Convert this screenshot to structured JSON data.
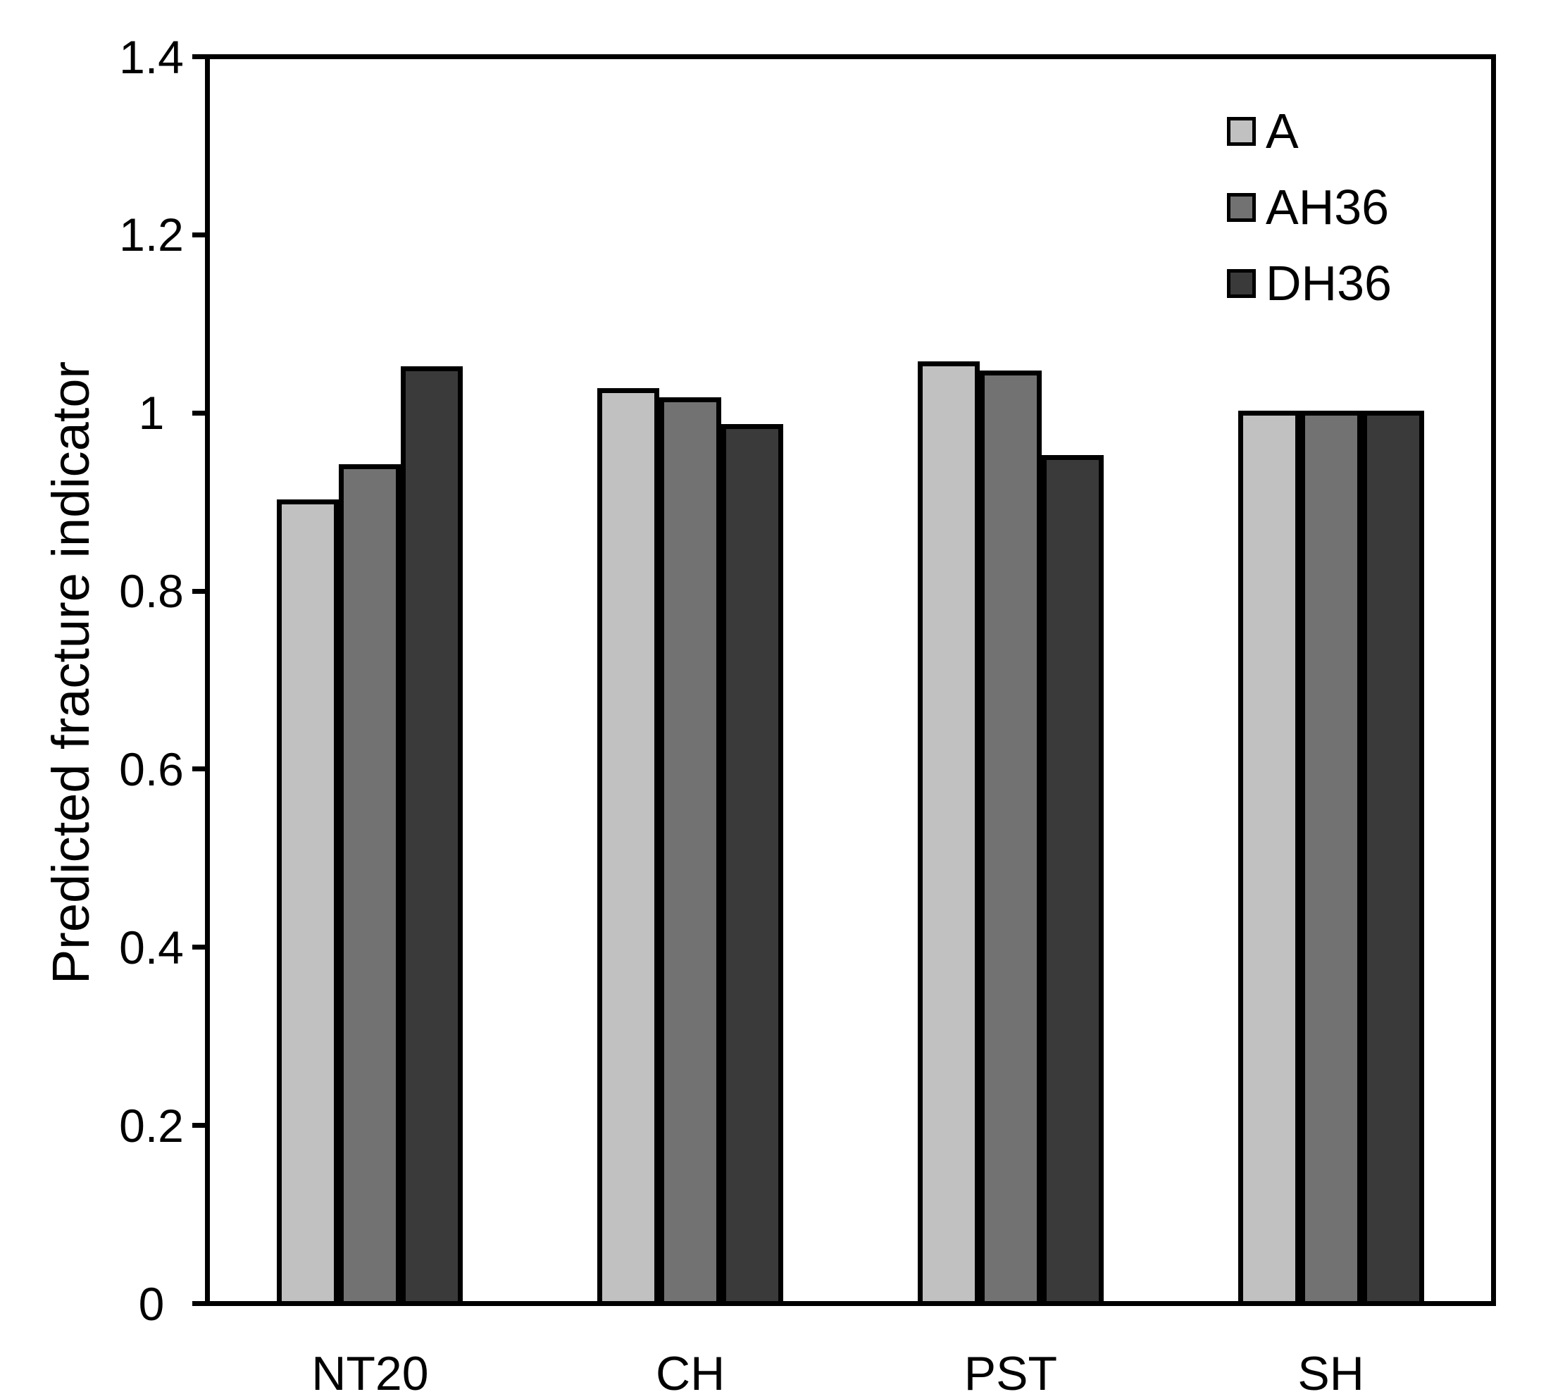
{
  "figure": {
    "background_color": "#ffffff",
    "axis_line_color": "#000000",
    "y_axis_title": "Predicted fracture indicator"
  },
  "chart_data": {
    "type": "bar",
    "title": "",
    "xlabel": "",
    "ylabel": "Predicted fracture indicator",
    "categories": [
      "NT20",
      "CH",
      "PST",
      "SH"
    ],
    "series": [
      {
        "name": "A",
        "color": "#c1c1c1",
        "values": [
          0.9,
          1.025,
          1.055,
          1.0
        ]
      },
      {
        "name": "AH36",
        "color": "#727272",
        "values": [
          0.94,
          1.015,
          1.045,
          1.0
        ]
      },
      {
        "name": "DH36",
        "color": "#3a3a3a",
        "values": [
          1.05,
          0.985,
          0.95,
          1.0
        ]
      }
    ],
    "ylim": [
      0,
      1.4
    ],
    "ytick_step": 0.2,
    "ytick_labels": [
      "0",
      "0.2",
      "0.4",
      "0.6",
      "0.8",
      "1",
      "1.2",
      "1.4"
    ],
    "grid": false,
    "legend_position": "upper right",
    "bar_edge_color": "#000000"
  }
}
